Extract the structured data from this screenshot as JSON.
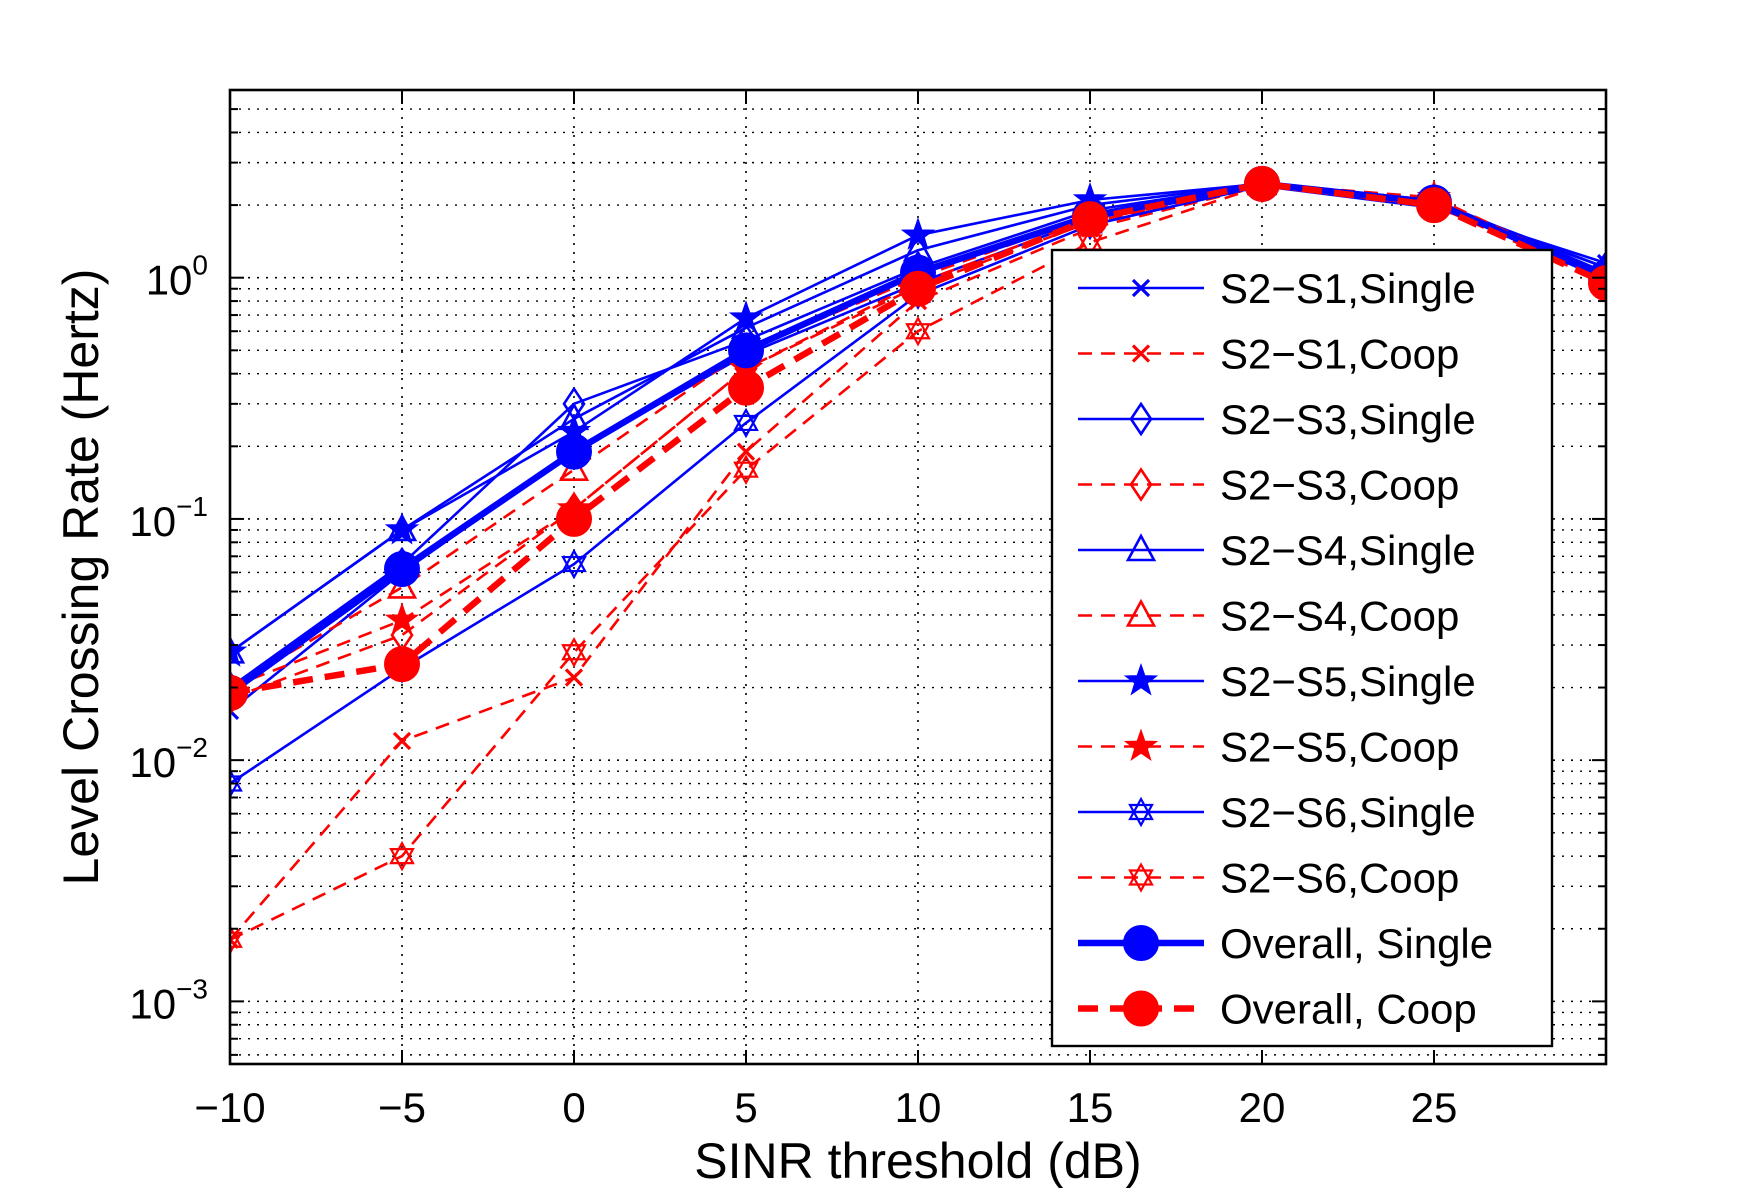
{
  "chart_data": {
    "type": "line",
    "title": "",
    "xlabel": "SINR threshold (dB)",
    "ylabel": "Level Crossing Rate (Hertz)",
    "xlim": [
      -10,
      30
    ],
    "ylim": [
      0.00055,
      6
    ],
    "yscale": "log",
    "grid": true,
    "legend_position": "lower-right",
    "x": [
      -10,
      -5,
      0,
      5,
      10,
      15,
      20,
      25,
      30
    ],
    "x_tick_labels": [
      {
        "value": -10,
        "label": "−10"
      },
      {
        "value": -5,
        "label": "−5"
      },
      {
        "value": 0,
        "label": "0"
      },
      {
        "value": 5,
        "label": "5"
      },
      {
        "value": 10,
        "label": "10"
      },
      {
        "value": 15,
        "label": "15"
      },
      {
        "value": 20,
        "label": "20"
      },
      {
        "value": 25,
        "label": "25"
      }
    ],
    "y_tick_labels": [
      {
        "value": 1,
        "base": "10",
        "exp": "0"
      },
      {
        "value": 0.1,
        "base": "10",
        "exp": "−1"
      },
      {
        "value": 0.01,
        "base": "10",
        "exp": "−2"
      },
      {
        "value": 0.001,
        "base": "10",
        "exp": "−3"
      }
    ],
    "colors": {
      "single": "#0000ff",
      "coop": "#ff0000"
    },
    "series": [
      {
        "name": "S2−S1,Single",
        "style": "solid",
        "color": "#0000ff",
        "marker": "x",
        "values": [
          0.016,
          0.06,
          0.19,
          0.48,
          0.95,
          1.75,
          2.4,
          1.95,
          1.15
        ]
      },
      {
        "name": "S2−S1,Coop",
        "style": "dashed",
        "color": "#ff0000",
        "marker": "x",
        "values": [
          0.0018,
          0.012,
          0.022,
          0.19,
          0.8,
          1.6,
          2.4,
          2.0,
          1.0
        ]
      },
      {
        "name": "S2−S3,Single",
        "style": "solid",
        "color": "#0000ff",
        "marker": "diamond",
        "values": [
          0.02,
          0.065,
          0.3,
          0.55,
          1.1,
          1.9,
          2.45,
          2.0,
          1.1
        ]
      },
      {
        "name": "S2−S3,Coop",
        "style": "dashed",
        "color": "#ff0000",
        "marker": "diamond",
        "values": [
          0.018,
          0.033,
          0.11,
          0.42,
          0.92,
          1.7,
          2.4,
          2.0,
          1.0
        ]
      },
      {
        "name": "S2−S4,Single",
        "style": "solid",
        "color": "#0000ff",
        "marker": "triangle",
        "values": [
          0.028,
          0.09,
          0.26,
          0.62,
          1.3,
          2.0,
          2.45,
          2.05,
          1.1
        ]
      },
      {
        "name": "S2−S4,Coop",
        "style": "dashed",
        "color": "#ff0000",
        "marker": "triangle",
        "values": [
          0.02,
          0.052,
          0.16,
          0.5,
          1.0,
          1.8,
          2.45,
          2.05,
          1.0
        ]
      },
      {
        "name": "S2−S5,Single",
        "style": "solid",
        "color": "#0000ff",
        "marker": "star",
        "values": [
          0.028,
          0.09,
          0.23,
          0.68,
          1.5,
          2.1,
          2.45,
          2.1,
          1.05
        ]
      },
      {
        "name": "S2−S5,Coop",
        "style": "dashed",
        "color": "#ff0000",
        "marker": "star",
        "values": [
          0.02,
          0.038,
          0.11,
          0.42,
          0.95,
          1.75,
          2.45,
          2.15,
          1.0
        ]
      },
      {
        "name": "S2−S6,Single",
        "style": "solid",
        "color": "#0000ff",
        "marker": "hexagram",
        "values": [
          0.008,
          0.024,
          0.065,
          0.25,
          0.85,
          1.65,
          2.4,
          2.0,
          1.05
        ]
      },
      {
        "name": "S2−S6,Coop",
        "style": "dashed",
        "color": "#ff0000",
        "marker": "hexagram",
        "values": [
          0.0018,
          0.004,
          0.028,
          0.16,
          0.6,
          1.4,
          2.4,
          2.0,
          0.95
        ]
      },
      {
        "name": "Overall, Single",
        "style": "solid-thick",
        "color": "#0000ff",
        "marker": "circle",
        "values": [
          0.019,
          0.062,
          0.19,
          0.5,
          1.05,
          1.8,
          2.45,
          2.05,
          1.0
        ]
      },
      {
        "name": "Overall, Coop",
        "style": "dashed-thick",
        "color": "#ff0000",
        "marker": "circle",
        "values": [
          0.019,
          0.025,
          0.1,
          0.35,
          0.9,
          1.75,
          2.45,
          2.0,
          0.95
        ]
      }
    ]
  }
}
